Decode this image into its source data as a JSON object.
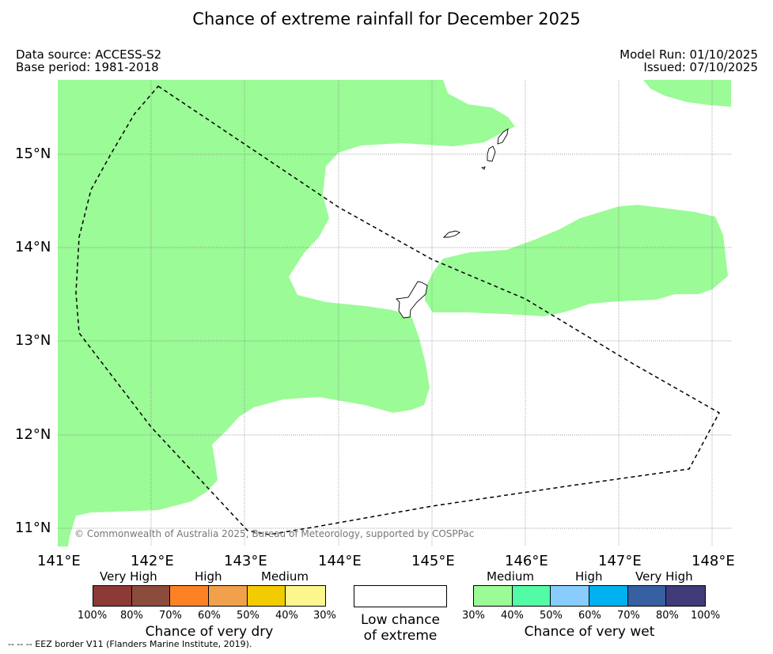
{
  "title": "Chance of extreme rainfall for December 2025",
  "meta": {
    "data_source": "Data source: ACCESS-S2",
    "base_period": "Base period: 1981-2018",
    "model_run": "Model Run: 01/10/2025",
    "issued": "Issued: 07/10/2025"
  },
  "map": {
    "copyright": "© Commonwealth of Australia 2025, Bureau of Meteorology, supported by COSPPac",
    "x_ticks": [
      "141°E",
      "142°E",
      "143°E",
      "144°E",
      "145°E",
      "146°E",
      "147°E",
      "148°E"
    ],
    "y_ticks": [
      "15°N",
      "14°N",
      "13°N",
      "12°N",
      "11°N"
    ],
    "colors": {
      "medium_wet": "#9bfb97",
      "eez_line": "#000000",
      "grid": "#777777"
    }
  },
  "legend": {
    "dry": {
      "category_labels": [
        "Very High",
        "High",
        "Medium"
      ],
      "ticks": [
        "100%",
        "80%",
        "70%",
        "60%",
        "50%",
        "40%",
        "30%"
      ],
      "colors": [
        "#8b3a36",
        "#8c4c3c",
        "#fd8223",
        "#f1a04b",
        "#f2cb00",
        "#fdf58e"
      ],
      "title": "Chance of very dry"
    },
    "low": {
      "line1": "Low chance",
      "line2": "of extreme"
    },
    "wet": {
      "category_labels": [
        "Medium",
        "High",
        "Very High"
      ],
      "ticks": [
        "30%",
        "40%",
        "50%",
        "60%",
        "70%",
        "80%",
        "100%"
      ],
      "colors": [
        "#9bfb97",
        "#52fca4",
        "#88cdfd",
        "#00b1ef",
        "#3660a2",
        "#403c7a"
      ],
      "title": "Chance of very wet"
    }
  },
  "footnote": "--  --  -- EEZ border V11 (Flanders Marine Institute, 2019)."
}
